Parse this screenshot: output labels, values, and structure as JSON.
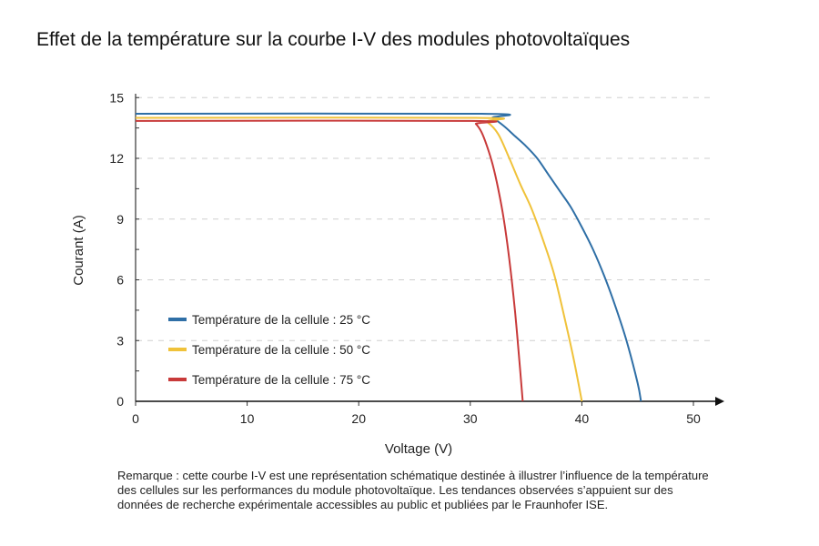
{
  "chart_data": {
    "type": "line",
    "title": "Effet de la température sur la courbe I-V des modules photovoltaïques",
    "xlabel": "Voltage (V)",
    "ylabel": "Courant (A)",
    "xlim": [
      0,
      52
    ],
    "ylim": [
      0,
      15
    ],
    "xticks": [
      "0",
      "10",
      "20",
      "30",
      "40",
      "50"
    ],
    "yticks": [
      "0",
      "3",
      "6",
      "9",
      "12",
      "15"
    ],
    "grid": "horizontal dashed",
    "legend": "bottom-left",
    "series": [
      {
        "name": "Température de la cellule : 25 °C",
        "color": "#2f6fa6",
        "x": [
          0,
          31,
          32,
          33,
          34,
          35,
          36,
          37,
          38,
          39,
          40,
          41,
          42,
          43,
          44,
          45,
          45.3
        ],
        "y": [
          14.2,
          14.2,
          14.0,
          13.6,
          13.1,
          12.6,
          12.0,
          11.2,
          10.4,
          9.6,
          8.6,
          7.5,
          6.2,
          4.7,
          3.0,
          0.9,
          0
        ]
      },
      {
        "name": "Température de la cellule : 50 °C",
        "color": "#f0c23a",
        "x": [
          0,
          30.5,
          31.5,
          32.5,
          33.5,
          34.5,
          35.5,
          36.5,
          37.5,
          38.5,
          39.3,
          40
        ],
        "y": [
          14.0,
          14.0,
          13.8,
          13.2,
          12.0,
          10.7,
          9.5,
          8.0,
          6.3,
          4.0,
          2.0,
          0
        ]
      },
      {
        "name": "Température de la cellule : 75 °C",
        "color": "#c83a3a",
        "x": [
          0,
          30,
          30.5,
          31,
          31.5,
          32,
          32.5,
          33,
          33.5,
          34,
          34.4,
          34.7
        ],
        "y": [
          13.85,
          13.85,
          13.7,
          13.3,
          12.6,
          11.7,
          10.5,
          9.0,
          7.0,
          4.5,
          2.0,
          0
        ]
      }
    ]
  },
  "note": "Remarque : cette courbe I-V est une représentation schématique destinée à illustrer l’influence de la température des cellules sur les performances du module photovoltaïque. Les tendances observées s’appuient sur des données de recherche expérimentale accessibles au public et publiées par le Fraunhofer ISE."
}
